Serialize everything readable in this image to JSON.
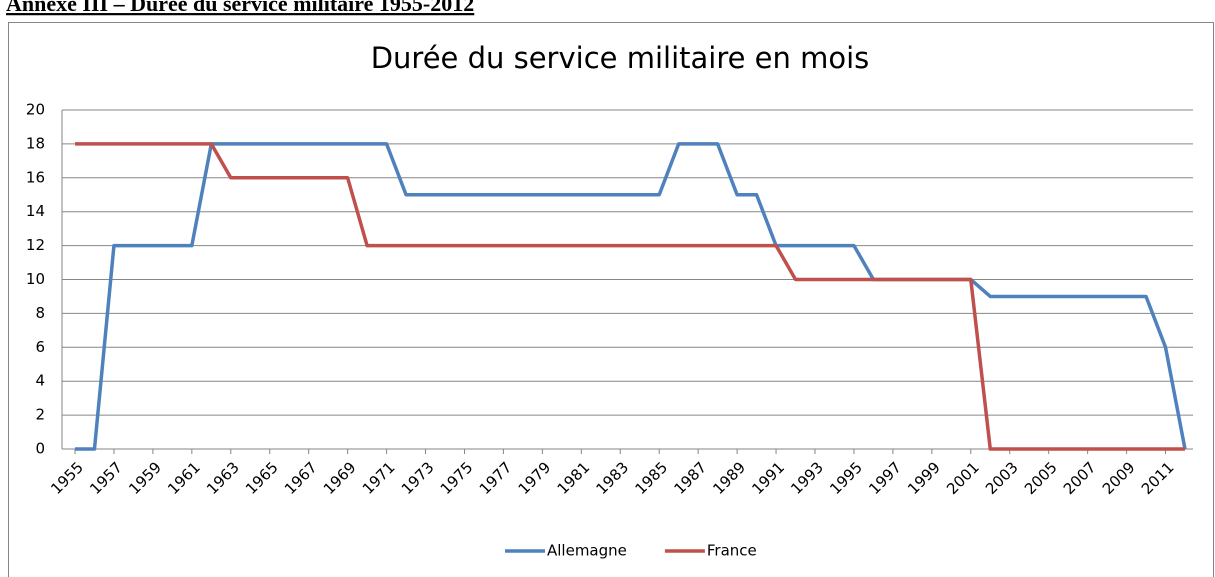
{
  "heading": "Annexe III – Durée du service militaire 1955-2012",
  "chart_data": {
    "type": "line",
    "title": "Durée du service militaire en mois",
    "x": [
      1955,
      1956,
      1957,
      1958,
      1959,
      1960,
      1961,
      1962,
      1963,
      1964,
      1965,
      1966,
      1967,
      1968,
      1969,
      1970,
      1971,
      1972,
      1973,
      1974,
      1975,
      1976,
      1977,
      1978,
      1979,
      1980,
      1981,
      1982,
      1983,
      1984,
      1985,
      1986,
      1987,
      1988,
      1989,
      1990,
      1991,
      1992,
      1993,
      1994,
      1995,
      1996,
      1997,
      1998,
      1999,
      2000,
      2001,
      2002,
      2003,
      2004,
      2005,
      2006,
      2007,
      2008,
      2009,
      2010,
      2011,
      2012
    ],
    "xlim": [
      1955,
      2012
    ],
    "xticks": [
      1955,
      1957,
      1959,
      1961,
      1963,
      1965,
      1967,
      1969,
      1971,
      1973,
      1975,
      1977,
      1979,
      1981,
      1983,
      1985,
      1987,
      1989,
      1991,
      1993,
      1995,
      1997,
      1999,
      2001,
      2003,
      2005,
      2007,
      2009,
      2011
    ],
    "ylim": [
      0,
      20
    ],
    "yticks": [
      0,
      2,
      4,
      6,
      8,
      10,
      12,
      14,
      16,
      18,
      20
    ],
    "grid": true,
    "legend": "bottom",
    "series": [
      {
        "name": "Allemagne",
        "color": "#4f81bd",
        "values": [
          0,
          0,
          12,
          12,
          12,
          12,
          12,
          18,
          18,
          18,
          18,
          18,
          18,
          18,
          18,
          18,
          18,
          15,
          15,
          15,
          15,
          15,
          15,
          15,
          15,
          15,
          15,
          15,
          15,
          15,
          15,
          18,
          18,
          18,
          15,
          15,
          12,
          12,
          12,
          12,
          12,
          10,
          10,
          10,
          10,
          10,
          10,
          9,
          9,
          9,
          9,
          9,
          9,
          9,
          9,
          9,
          6,
          0
        ]
      },
      {
        "name": "France",
        "color": "#c0504d",
        "values": [
          18,
          18,
          18,
          18,
          18,
          18,
          18,
          18,
          16,
          16,
          16,
          16,
          16,
          16,
          16,
          12,
          12,
          12,
          12,
          12,
          12,
          12,
          12,
          12,
          12,
          12,
          12,
          12,
          12,
          12,
          12,
          12,
          12,
          12,
          12,
          12,
          12,
          10,
          10,
          10,
          10,
          10,
          10,
          10,
          10,
          10,
          10,
          0,
          0,
          0,
          0,
          0,
          0,
          0,
          0,
          0,
          0,
          0
        ]
      }
    ]
  }
}
